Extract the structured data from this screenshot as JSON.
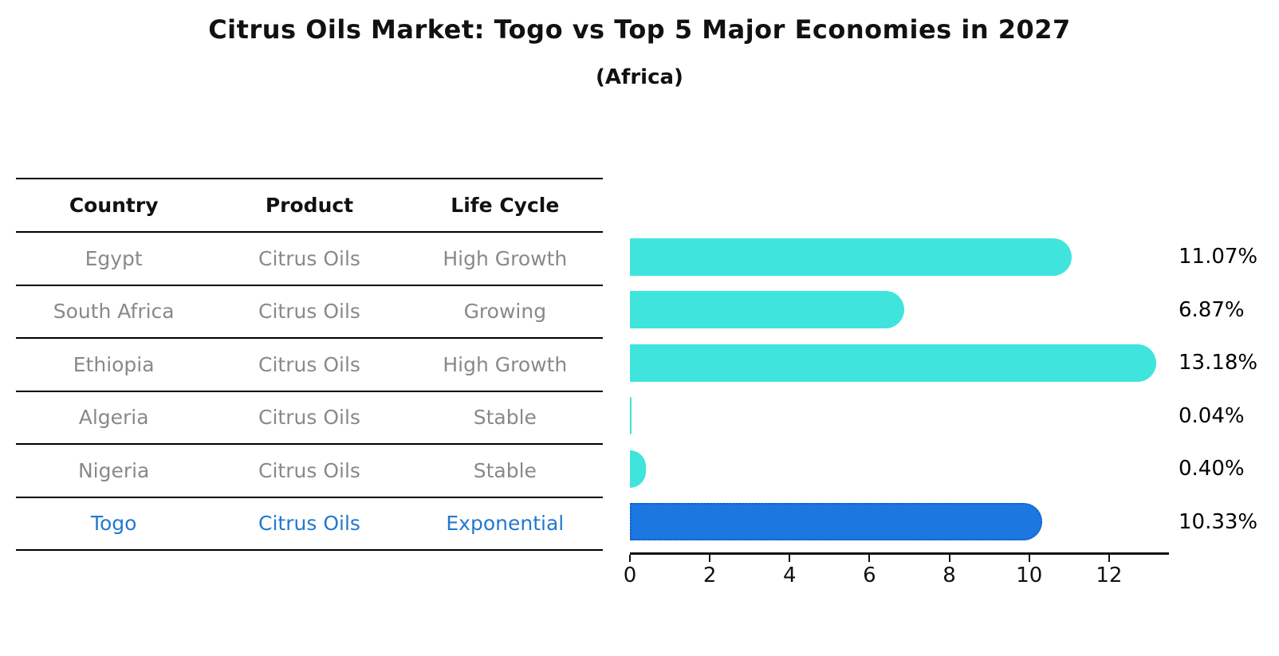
{
  "title": "Citrus Oils Market: Togo vs Top 5 Major Economies in 2027",
  "subtitle": "(Africa)",
  "table": {
    "headers": [
      "Country",
      "Product",
      "Life Cycle"
    ],
    "rows": [
      {
        "country": "Egypt",
        "product": "Citrus Oils",
        "life_cycle": "High Growth",
        "highlight": false
      },
      {
        "country": "South Africa",
        "product": "Citrus Oils",
        "life_cycle": "Growing",
        "highlight": false
      },
      {
        "country": "Ethiopia",
        "product": "Citrus Oils",
        "life_cycle": "High Growth",
        "highlight": false
      },
      {
        "country": "Algeria",
        "product": "Citrus Oils",
        "life_cycle": "Stable",
        "highlight": false
      },
      {
        "country": "Nigeria",
        "product": "Citrus Oils",
        "life_cycle": "Stable",
        "highlight": false
      },
      {
        "country": "Togo",
        "product": "Citrus Oils",
        "life_cycle": "Exponential",
        "highlight": true
      }
    ]
  },
  "chart_data": {
    "type": "bar",
    "orientation": "horizontal",
    "title": "Citrus Oils Market: Togo vs Top 5 Major Economies in 2027",
    "subtitle": "(Africa)",
    "categories": [
      "Egypt",
      "South Africa",
      "Ethiopia",
      "Algeria",
      "Nigeria",
      "Togo"
    ],
    "values": [
      11.07,
      6.87,
      13.18,
      0.04,
      0.4,
      10.33
    ],
    "value_labels": [
      "11.07%",
      "6.87%",
      "13.18%",
      "0.04%",
      "0.40%",
      "10.33%"
    ],
    "xlabel": "",
    "ylabel": "",
    "xlim": [
      0,
      13.5
    ],
    "x_ticks": [
      0,
      2,
      4,
      6,
      8,
      10,
      12
    ],
    "grid": false,
    "legend": false,
    "highlight_index": 5,
    "highlight_style": "dotted-border",
    "bar_color_default": "#3FE4DC",
    "bar_color_highlight": "#1C77E1",
    "highlight_text_color": "#2279CE"
  },
  "colors": {
    "bar_default": "#3FE4DC",
    "bar_highlight": "#1C77E1",
    "highlight_text": "#2279CE",
    "table_text": "#898989",
    "axis": "#111111"
  }
}
